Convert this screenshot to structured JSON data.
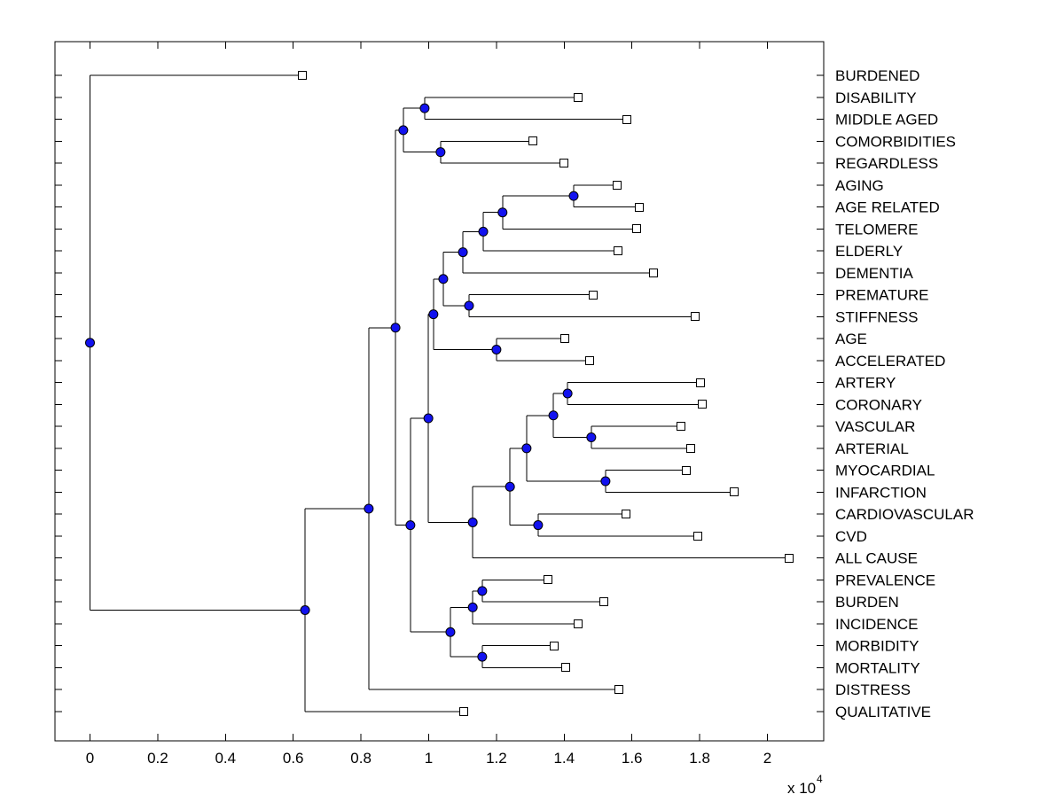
{
  "figure": {
    "background": "#ffffff",
    "colors": {
      "line": "#000000",
      "text": "#000000",
      "node_marker": "#1212ef",
      "node_marker_edge": "#000000",
      "leaf_marker_fill": "#ffffff",
      "leaf_marker_edge": "#000000"
    }
  },
  "chart_data": {
    "type": "dendrogram",
    "orientation": "left-to-right",
    "title": "",
    "xlabel": "",
    "ylabel": "",
    "x_axis": {
      "tick_values": [
        0,
        0.2,
        0.4,
        0.6,
        0.8,
        1,
        1.2,
        1.4,
        1.6,
        1.8,
        2
      ],
      "tick_labels": [
        "0",
        "0.2",
        "0.4",
        "0.6",
        "0.8",
        "1",
        "1.2",
        "1.4",
        "1.6",
        "1.8",
        "2"
      ],
      "scale_base": "x 10",
      "scale_exponent": "4",
      "xlim": [
        -0.103,
        2.166
      ],
      "units_multiplier": 10000
    },
    "leaf_order": [
      "BURDENED",
      "DISABILITY",
      "MIDDLE AGED",
      "COMORBIDITIES",
      "REGARDLESS",
      "AGING",
      "AGE RELATED",
      "TELOMERE",
      "ELDERLY",
      "DEMENTIA",
      "PREMATURE",
      "STIFFNESS",
      "AGE",
      "ACCELERATED",
      "ARTERY",
      "CORONARY",
      "VASCULAR",
      "ARTERIAL",
      "MYOCARDIAL",
      "INFARCTION",
      "CARDIOVASCULAR",
      "CVD",
      "ALL CAUSE",
      "PREVALENCE",
      "BURDEN",
      "INCIDENCE",
      "MORBIDITY",
      "MORTALITY",
      "DISTRESS",
      "QUALITATIVE"
    ],
    "tree": {
      "x": 0,
      "children": [
        {
          "x": 0.627,
          "label": "BURDENED"
        },
        {
          "x": 0.635,
          "children": [
            {
              "x": 0.823,
              "children": [
                {
                  "x": 0.902,
                  "children": [
                    {
                      "x": 0.925,
                      "children": [
                        {
                          "x": 0.988,
                          "children": [
                            {
                              "x": 1.441,
                              "label": "DISABILITY"
                            },
                            {
                              "x": 1.584,
                              "label": "MIDDLE AGED"
                            }
                          ]
                        },
                        {
                          "x": 1.035,
                          "children": [
                            {
                              "x": 1.308,
                              "label": "COMORBIDITIES"
                            },
                            {
                              "x": 1.399,
                              "label": "REGARDLESS"
                            }
                          ]
                        }
                      ]
                    },
                    {
                      "x": 0.946,
                      "children": [
                        {
                          "x": 0.999,
                          "children": [
                            {
                              "x": 1.014,
                              "children": [
                                {
                                  "x": 1.043,
                                  "children": [
                                    {
                                      "x": 1.101,
                                      "children": [
                                        {
                                          "x": 1.161,
                                          "children": [
                                            {
                                              "x": 1.218,
                                              "children": [
                                                {
                                                  "x": 1.428,
                                                  "children": [
                                                    {
                                                      "x": 1.556,
                                                      "label": "AGING"
                                                    },
                                                    {
                                                      "x": 1.621,
                                                      "label": "AGE RELATED"
                                                    }
                                                  ]
                                                },
                                                {
                                                  "x": 1.614,
                                                  "label": "TELOMERE"
                                                }
                                              ]
                                            },
                                            {
                                              "x": 1.559,
                                              "label": "ELDERLY"
                                            }
                                          ]
                                        },
                                        {
                                          "x": 1.664,
                                          "label": "DEMENTIA"
                                        }
                                      ]
                                    },
                                    {
                                      "x": 1.119,
                                      "children": [
                                        {
                                          "x": 1.486,
                                          "label": "PREMATURE"
                                        },
                                        {
                                          "x": 1.787,
                                          "label": "STIFFNESS"
                                        }
                                      ]
                                    }
                                  ]
                                },
                                {
                                  "x": 1.2,
                                  "children": [
                                    {
                                      "x": 1.402,
                                      "label": "AGE"
                                    },
                                    {
                                      "x": 1.475,
                                      "label": "ACCELERATED"
                                    }
                                  ]
                                }
                              ]
                            },
                            {
                              "x": 1.13,
                              "children": [
                                {
                                  "x": 1.24,
                                  "children": [
                                    {
                                      "x": 1.289,
                                      "children": [
                                        {
                                          "x": 1.368,
                                          "children": [
                                            {
                                              "x": 1.41,
                                              "children": [
                                                {
                                                  "x": 1.802,
                                                  "label": "ARTERY"
                                                },
                                                {
                                                  "x": 1.808,
                                                  "label": "CORONARY"
                                                }
                                              ]
                                            },
                                            {
                                              "x": 1.48,
                                              "children": [
                                                {
                                                  "x": 1.745,
                                                  "label": "VASCULAR"
                                                },
                                                {
                                                  "x": 1.774,
                                                  "label": "ARTERIAL"
                                                }
                                              ]
                                            }
                                          ]
                                        },
                                        {
                                          "x": 1.522,
                                          "children": [
                                            {
                                              "x": 1.761,
                                              "label": "MYOCARDIAL"
                                            },
                                            {
                                              "x": 1.903,
                                              "label": "INFARCTION"
                                            }
                                          ]
                                        }
                                      ]
                                    },
                                    {
                                      "x": 1.323,
                                      "children": [
                                        {
                                          "x": 1.582,
                                          "label": "CARDIOVASCULAR"
                                        },
                                        {
                                          "x": 1.794,
                                          "label": "CVD"
                                        }
                                      ]
                                    }
                                  ]
                                },
                                {
                                  "x": 2.064,
                                  "label": "ALL CAUSE"
                                }
                              ]
                            }
                          ]
                        },
                        {
                          "x": 1.064,
                          "children": [
                            {
                              "x": 1.13,
                              "children": [
                                {
                                  "x": 1.158,
                                  "children": [
                                    {
                                      "x": 1.352,
                                      "label": "PREVALENCE"
                                    },
                                    {
                                      "x": 1.517,
                                      "label": "BURDEN"
                                    }
                                  ]
                                },
                                {
                                  "x": 1.441,
                                  "label": "INCIDENCE"
                                }
                              ]
                            },
                            {
                              "x": 1.158,
                              "children": [
                                {
                                  "x": 1.37,
                                  "label": "MORBIDITY"
                                },
                                {
                                  "x": 1.404,
                                  "label": "MORTALITY"
                                }
                              ]
                            }
                          ]
                        }
                      ]
                    }
                  ]
                },
                {
                  "x": 1.561,
                  "label": "DISTRESS"
                }
              ]
            },
            {
              "x": 1.103,
              "label": "QUALITATIVE"
            }
          ]
        }
      ]
    }
  }
}
